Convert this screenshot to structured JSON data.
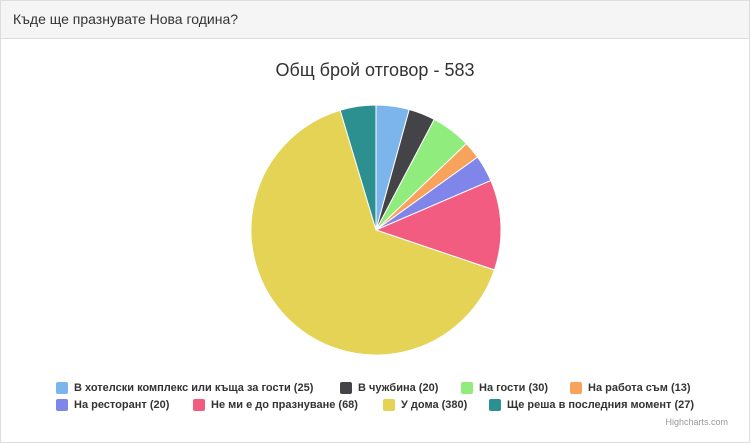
{
  "panel": {
    "heading": "Къде ще празнувате Нова година?"
  },
  "credits": "Highcharts.com",
  "chart_data": {
    "type": "pie",
    "title": "Общ брой отговор - 583",
    "legend_position": "bottom",
    "slices": [
      {
        "label": "В хотелски комплекс или къща за гости",
        "value": 25,
        "color": "#7cb5ec",
        "legend_text": "В хотелски комплекс или къща за гости (25)"
      },
      {
        "label": "В чужбина",
        "value": 20,
        "color": "#434348",
        "legend_text": "В чужбина (20)"
      },
      {
        "label": "На гости",
        "value": 30,
        "color": "#90ed7d",
        "legend_text": "На гости (30)"
      },
      {
        "label": "На работа съм",
        "value": 13,
        "color": "#f7a35c",
        "legend_text": "На работа съм (13)"
      },
      {
        "label": "На ресторант",
        "value": 20,
        "color": "#8085e9",
        "legend_text": "На ресторант (20)"
      },
      {
        "label": "Не ми е до празнуване",
        "value": 68,
        "color": "#f15c80",
        "legend_text": "Не ми е до празнуване (68)"
      },
      {
        "label": "У дома",
        "value": 380,
        "color": "#e4d354",
        "legend_text": "У дома (380)"
      },
      {
        "label": "Ще реша в последния момент",
        "value": 27,
        "color": "#2b908f",
        "legend_text": "Ще реша в последния момент (27)"
      }
    ]
  }
}
